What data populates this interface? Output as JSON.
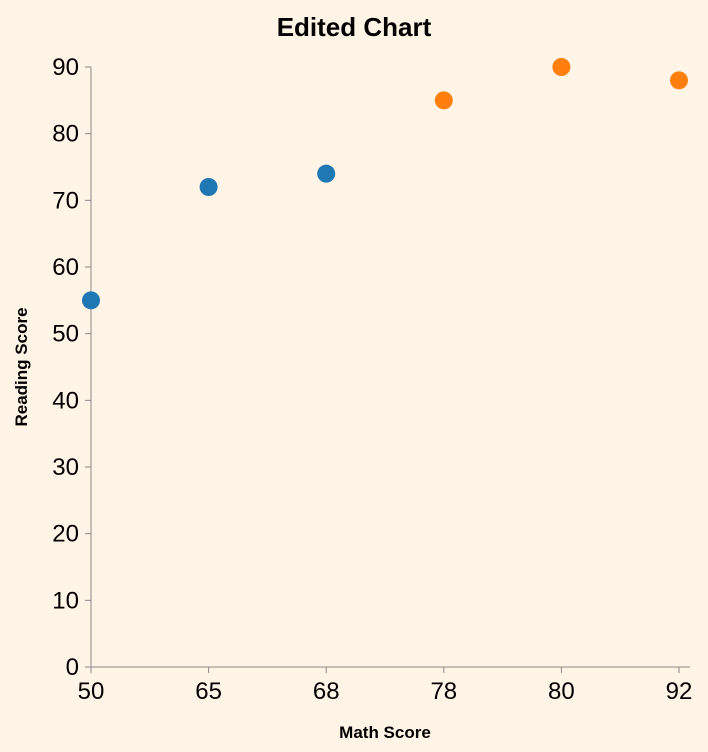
{
  "chart_data": {
    "type": "scatter",
    "title": "Edited Chart",
    "xlabel": "Math Score",
    "ylabel": "Reading Score",
    "x_scale": "ordinal",
    "x_categories": [
      "50",
      "65",
      "68",
      "78",
      "80",
      "92"
    ],
    "ylim": [
      0,
      90
    ],
    "y_ticks": [
      0,
      10,
      20,
      30,
      40,
      50,
      60,
      70,
      80,
      90
    ],
    "grid": false,
    "legend": "none",
    "points": [
      {
        "x": "50",
        "y": 55,
        "color": "#1f77b4"
      },
      {
        "x": "65",
        "y": 72,
        "color": "#1f77b4"
      },
      {
        "x": "68",
        "y": 74,
        "color": "#1f77b4"
      },
      {
        "x": "78",
        "y": 85,
        "color": "#ff7f0e"
      },
      {
        "x": "80",
        "y": 90,
        "color": "#ff7f0e"
      },
      {
        "x": "92",
        "y": 88,
        "color": "#ff7f0e"
      }
    ]
  }
}
